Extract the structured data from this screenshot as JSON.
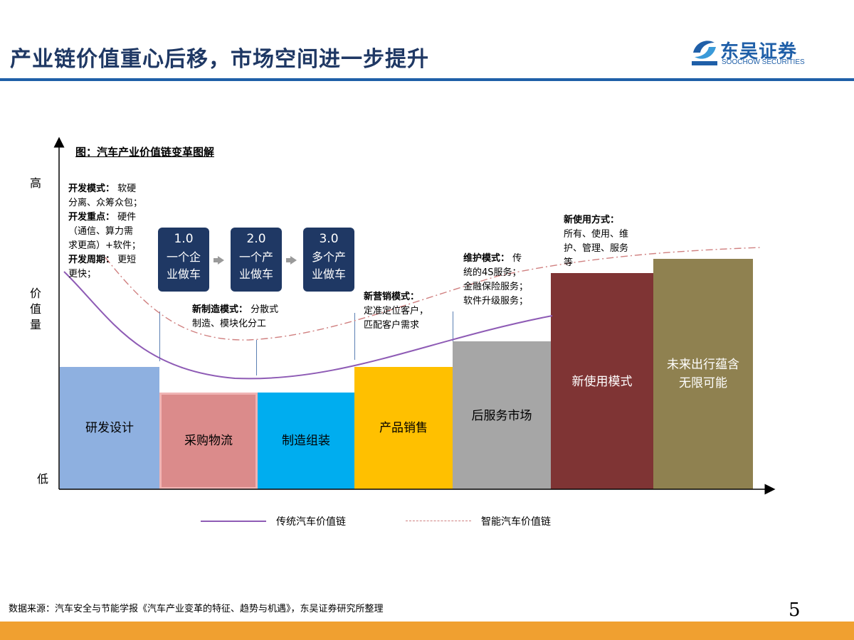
{
  "header": {
    "title": "产业链价值重心后移，市场空间进一步提升",
    "logo_cn": "东吴证券",
    "logo_en": "SOOCHOW SECURITIES"
  },
  "figure": {
    "caption": "图：汽车产业价值链变革图解",
    "y_high": "高",
    "y_low": "低",
    "y_label": [
      "价",
      "值",
      "量"
    ],
    "bars": [
      {
        "label": "研发设计",
        "color": "#8eb0e0",
        "level": 0.43
      },
      {
        "label": "采购物流",
        "color": "#db8b8b",
        "level": 0.34
      },
      {
        "label": "制造组装",
        "color": "#00adef",
        "level": 0.34
      },
      {
        "label": "产品销售",
        "color": "#ffc000",
        "level": 0.43
      },
      {
        "label": "后服务市场",
        "color": "#a6a6a6",
        "level": 0.52
      },
      {
        "label": "新使用模式",
        "color": "#7f3434",
        "level": 0.76
      },
      {
        "label": "未来出行蕴含无限可能",
        "color": "#8f8150",
        "level": 0.81
      }
    ],
    "stages": [
      {
        "num": "1.0",
        "text_1": "一个企",
        "text_2": "业做车"
      },
      {
        "num": "2.0",
        "text_1": "一个产",
        "text_2": "业做车"
      },
      {
        "num": "3.0",
        "text_1": "多个产",
        "text_2": "业做车"
      }
    ],
    "annotations": {
      "dev": {
        "mode_title": "开发模式：",
        "mode_1": "软硬",
        "mode_2": "分离、众筹众包；",
        "focus_title": "开发重点：",
        "focus_1": "硬件",
        "focus_2": "（通信、算力需",
        "focus_3": "求更高）+软件；",
        "cycle_title": "开发周期：",
        "cycle_1": "更短",
        "cycle_2": "更快；"
      },
      "manufacture": {
        "title": "新制造模式：",
        "line_1": "分散式",
        "line_2": "制造、模块化分工"
      },
      "sales": {
        "title": "新营销模式：",
        "line_1": "定准定位客户，",
        "line_2": "匹配客户需求"
      },
      "service": {
        "title": "维护模式：",
        "line_1": "传",
        "line_2": "统的4S服务；",
        "line_3": "金融保险服务；",
        "line_4": "软件升级服务；"
      },
      "usage": {
        "title": "新使用方式：",
        "line_1": "所有、使用、维",
        "line_2": "护、管理、服务",
        "line_3": "等"
      }
    },
    "legend": {
      "traditional": "传统汽车价值链",
      "smart": "智能汽车价值链",
      "traditional_color": "#8e5bb5",
      "smart_color": "#d08080"
    }
  },
  "footer": {
    "source": "数据来源：汽车安全与节能学报《汽车产业变革的特征、趋势与机遇》，东吴证券研究所整理",
    "page": "5"
  }
}
